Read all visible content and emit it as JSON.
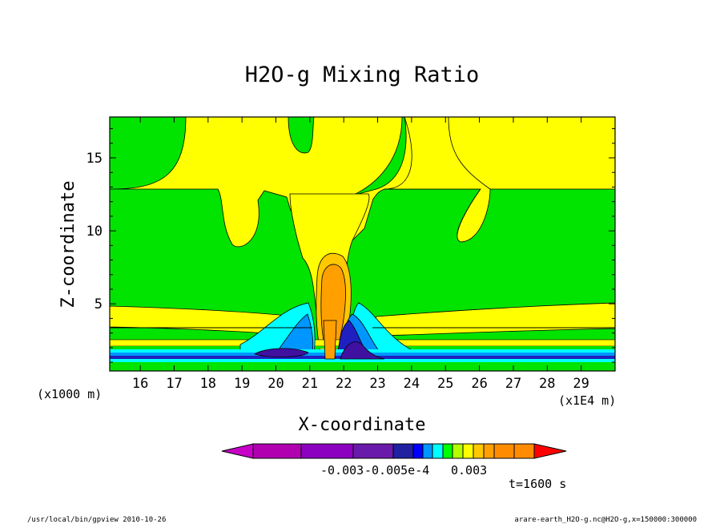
{
  "chart_data": {
    "type": "heatmap",
    "title": "H2O-g Mixing Ratio",
    "xlabel": "X-coordinate",
    "ylabel": "Z-coordinate",
    "x_unit_note": "(x1E4 m)",
    "y_unit_note": "(x1000 m)",
    "xlim": [
      15.1,
      30.0
    ],
    "ylim": [
      0.4,
      17.8
    ],
    "x_ticks": [
      "16",
      "17",
      "18",
      "19",
      "20",
      "21",
      "22",
      "23",
      "24",
      "25",
      "26",
      "27",
      "28",
      "29"
    ],
    "y_ticks": [
      "5",
      "10",
      "15"
    ],
    "grid": false,
    "legend_placement": "bottom-center colorbar",
    "colorbar": {
      "tick_labels": [
        "-0.003",
        "-0.005e-4",
        "0.003"
      ],
      "segment_colors": [
        "#c800c8",
        "#b000b0",
        "#8c00c0",
        "#6a1aaa",
        "#2020a0",
        "#0000ff",
        "#0096ff",
        "#00ffff",
        "#00ff00",
        "#b4ff00",
        "#ffff00",
        "#ffc800",
        "#ffa000",
        "#ff8c00",
        "#ff0000"
      ]
    },
    "field_colors": {
      "background": "#00e400",
      "positive_light": "#ffff00",
      "positive_mid": "#ffc800",
      "positive_high": "#ffa000",
      "negative_light": "#00ffff",
      "negative_mid": "#0096ff",
      "negative_high": "#2020c0",
      "negative_core": "#4010a0"
    },
    "time_label": "t=1600 s"
  },
  "footer": {
    "left": "/usr/local/bin/gpview  2010-10-26",
    "right": "arare-earth_H2O-g.nc@H2O-g,x=150000:300000"
  }
}
